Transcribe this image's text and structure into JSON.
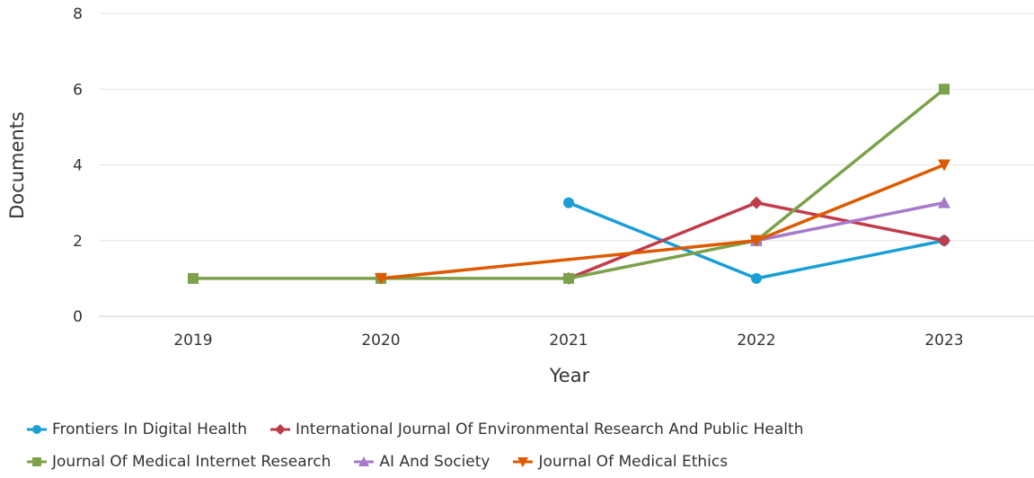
{
  "chart_data": {
    "type": "line",
    "xlabel": "Year",
    "ylabel": "Documents",
    "categories": [
      "2019",
      "2020",
      "2021",
      "2022",
      "2023"
    ],
    "ylim": [
      0,
      8
    ],
    "yticks": [
      "0",
      "2",
      "4",
      "6",
      "8"
    ],
    "grid": true,
    "legend_position": "bottom-left",
    "series": [
      {
        "name": "Frontiers In Digital Health",
        "color": "#1a9ed6",
        "marker": "circle",
        "values": [
          null,
          null,
          3,
          1,
          2
        ]
      },
      {
        "name": "International Journal Of Environmental Research And Public Health",
        "color": "#c23b4a",
        "marker": "diamond",
        "values": [
          null,
          null,
          1,
          3,
          2
        ]
      },
      {
        "name": "Journal Of Medical Internet Research",
        "color": "#7ba14a",
        "marker": "square",
        "values": [
          1,
          1,
          1,
          2,
          6
        ]
      },
      {
        "name": "AI And Society",
        "color": "#a779c9",
        "marker": "triangle-up",
        "values": [
          null,
          null,
          null,
          2,
          3
        ]
      },
      {
        "name": "Journal Of Medical Ethics",
        "color": "#dd5a00",
        "marker": "triangle-down",
        "values": [
          null,
          1,
          null,
          2,
          4
        ]
      }
    ]
  }
}
